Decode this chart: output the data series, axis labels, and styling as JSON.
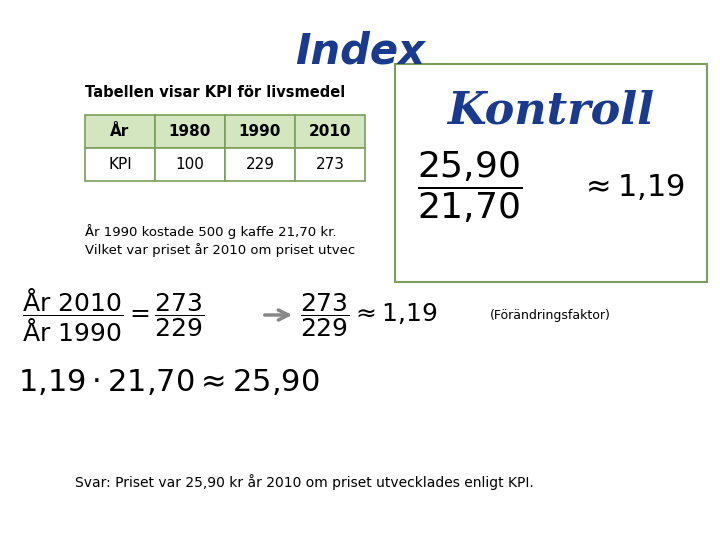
{
  "title": "Index",
  "title_color": "#1a3a8f",
  "title_fontsize": 30,
  "background_color": "#ffffff",
  "subtitle": "Tabellen visar KPI för livsmedel",
  "table_headers": [
    "År",
    "1980",
    "1990",
    "2010"
  ],
  "table_row": [
    "KPI",
    "100",
    "229",
    "273"
  ],
  "table_header_bg": "#d4e6c0",
  "table_border_color": "#7a9f5a",
  "kontroll_text": "Kontroll",
  "kontroll_color": "#1a3a8f",
  "kontroll_box_color": "#7a9f5a",
  "text_line1": "År 1990 kostade 500 g kaffe 21,70 kr.",
  "text_line2": "Vilket var priset år 2010 om priset utvec",
  "formula_label": "(Förändringsfaktor)",
  "svar_text": "Svar: Priset var 25,90 kr år 2010 om priset utvecklades enligt KPI."
}
